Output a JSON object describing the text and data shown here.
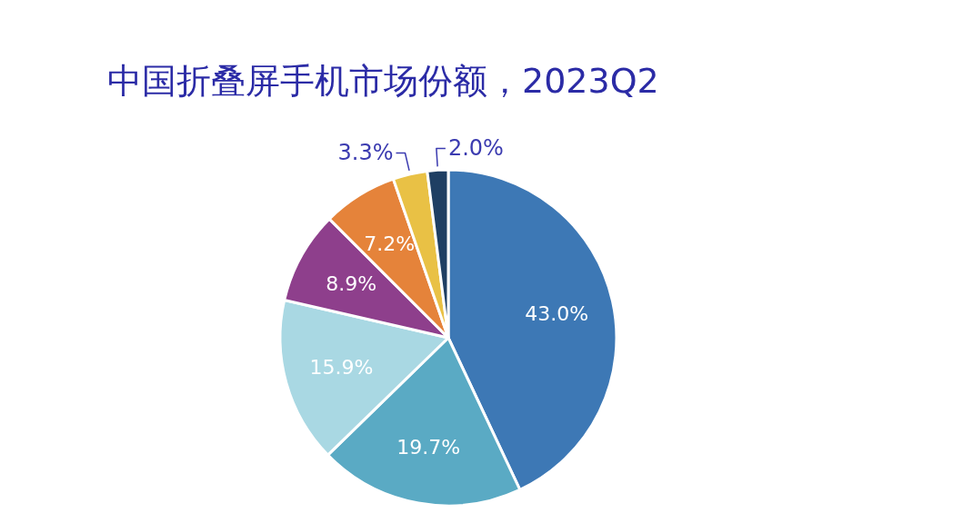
{
  "chart_data": {
    "type": "pie",
    "title": "中国折叠屏手机市场份额，2023Q2",
    "categories": [
      null,
      null,
      null,
      null,
      null,
      null,
      null
    ],
    "values": [
      43.0,
      19.7,
      15.9,
      8.9,
      7.2,
      3.3,
      2.0
    ],
    "value_labels": [
      "43.0%",
      "19.7%",
      "15.9%",
      "8.9%",
      "7.2%",
      "3.3%",
      "2.0%"
    ],
    "colors": [
      "#3d78b5",
      "#5aaac4",
      "#a9d8e3",
      "#8e3f8c",
      "#e5833a",
      "#e9c145",
      "#1f3f63"
    ]
  }
}
